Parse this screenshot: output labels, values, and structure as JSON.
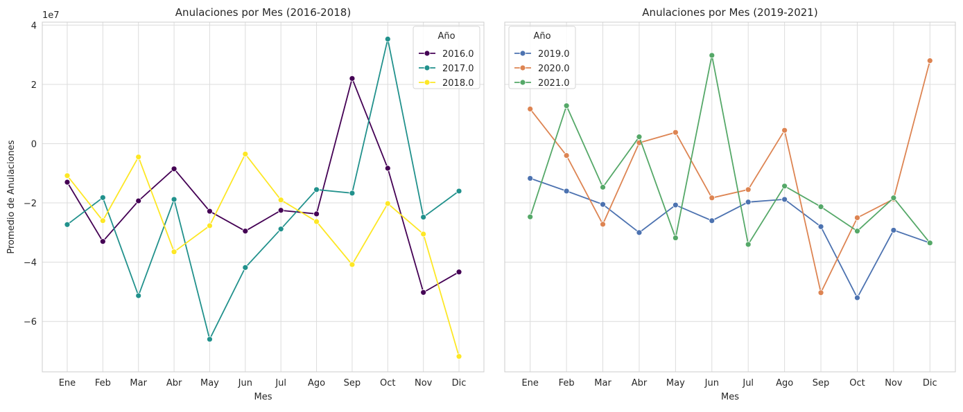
{
  "chart_data": [
    {
      "type": "line",
      "title": "Anulaciones por Mes (2016-2018)",
      "xlabel": "Mes",
      "ylabel": "Promedio de Anulaciones",
      "y_offset_label": "1e7",
      "categories": [
        "Ene",
        "Feb",
        "Mar",
        "Abr",
        "May",
        "Jun",
        "Jul",
        "Ago",
        "Sep",
        "Oct",
        "Nov",
        "Dic"
      ],
      "ylim": [
        -7.7,
        4.1
      ],
      "yticks": [
        -6,
        -4,
        -2,
        0,
        2,
        4
      ],
      "ytick_labels": [
        "−6",
        "−4",
        "−2",
        "0",
        "2",
        "4"
      ],
      "grid": true,
      "legend": {
        "title": "Año",
        "position": "top-right"
      },
      "series": [
        {
          "name": "2016.0",
          "color": "#440154",
          "values": [
            -1.3,
            -3.3,
            -1.93,
            -0.85,
            -2.28,
            -2.95,
            -2.25,
            -2.37,
            2.2,
            -0.83,
            -5.02,
            -4.33
          ]
        },
        {
          "name": "2017.0",
          "color": "#21918c",
          "values": [
            -2.73,
            -1.82,
            -5.13,
            -1.88,
            -6.6,
            -4.18,
            -2.88,
            -1.55,
            -1.67,
            3.53,
            -2.48,
            -1.6
          ]
        },
        {
          "name": "2018.0",
          "color": "#fde725",
          "values": [
            -1.08,
            -2.6,
            -0.45,
            -3.65,
            -2.77,
            -0.35,
            -1.9,
            -2.63,
            -4.08,
            -2.02,
            -3.05,
            -7.18
          ]
        }
      ]
    },
    {
      "type": "line",
      "title": "Anulaciones por Mes (2019-2021)",
      "xlabel": "Mes",
      "ylabel": "",
      "categories": [
        "Ene",
        "Feb",
        "Mar",
        "Abr",
        "May",
        "Jun",
        "Jul",
        "Ago",
        "Sep",
        "Oct",
        "Nov",
        "Dic"
      ],
      "ylim": [
        -7.7,
        4.1
      ],
      "yticks": [
        -6,
        -4,
        -2,
        0,
        2,
        4
      ],
      "grid": true,
      "legend": {
        "title": "Año",
        "position": "top-left"
      },
      "series": [
        {
          "name": "2019.0",
          "color": "#4c72b0",
          "values": [
            -1.17,
            -1.6,
            -2.05,
            -3.0,
            -2.07,
            -2.6,
            -1.97,
            -1.88,
            -2.8,
            -5.2,
            -2.92,
            -3.35
          ]
        },
        {
          "name": "2020.0",
          "color": "#dd8452",
          "values": [
            1.17,
            -0.4,
            -2.72,
            0.03,
            0.38,
            -1.83,
            -1.55,
            0.45,
            -5.03,
            -2.5,
            -1.87,
            2.8
          ]
        },
        {
          "name": "2021.0",
          "color": "#55a868",
          "values": [
            -2.47,
            1.28,
            -1.47,
            0.23,
            -3.18,
            2.98,
            -3.4,
            -1.43,
            -2.13,
            -2.95,
            -1.83,
            -3.35
          ]
        }
      ]
    }
  ]
}
